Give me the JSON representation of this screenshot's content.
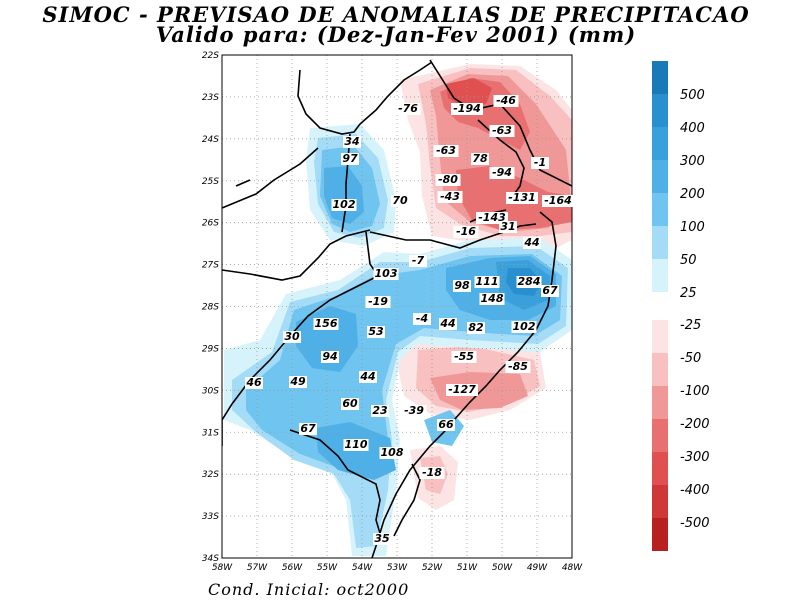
{
  "title_line1": "SIMOC - PREVISAO DE ANOMALIAS DE PRECIPITACAO",
  "title_line2": "Valido para: (Dez-Jan-Fev 2001) (mm)",
  "cond_inicial": "Cond. Inicial: oct2000",
  "lat_ticks": [
    "22S",
    "23S",
    "24S",
    "25S",
    "26S",
    "27S",
    "28S",
    "29S",
    "30S",
    "31S",
    "32S",
    "33S",
    "34S"
  ],
  "lon_ticks": [
    "58W",
    "57W",
    "56W",
    "55W",
    "54W",
    "53W",
    "52W",
    "51W",
    "50W",
    "49W",
    "48W"
  ],
  "colorbar_positive": [
    "500",
    "400",
    "300",
    "200",
    "100",
    "50",
    "25"
  ],
  "colorbar_negative": [
    "-25",
    "-50",
    "-100",
    "-200",
    "-300",
    "-400",
    "-500"
  ],
  "colors": {
    "pos": [
      "#1a7ab8",
      "#2a8fce",
      "#3aa0dc",
      "#4eb0e6",
      "#6fc4f0",
      "#a4dcf8",
      "#d6f3fc"
    ],
    "neg": [
      "#fce4e4",
      "#f8c0c0",
      "#f09898",
      "#e87070",
      "#e05050",
      "#d03838",
      "#b82020"
    ]
  },
  "labels": [
    {
      "t": "-76"
    },
    {
      "t": "-194"
    },
    {
      "t": "-46"
    },
    {
      "t": "-63"
    },
    {
      "t": "34"
    },
    {
      "t": "97"
    },
    {
      "t": "-63"
    },
    {
      "t": "78"
    },
    {
      "t": "-1"
    },
    {
      "t": "-80"
    },
    {
      "t": "-94"
    },
    {
      "t": "-43"
    },
    {
      "t": "-131"
    },
    {
      "t": "-164"
    },
    {
      "t": "102"
    },
    {
      "t": "70"
    },
    {
      "t": "-143"
    },
    {
      "t": "-16"
    },
    {
      "t": "31"
    },
    {
      "t": "44"
    },
    {
      "t": "-7"
    },
    {
      "t": "103"
    },
    {
      "t": "98"
    },
    {
      "t": "111"
    },
    {
      "t": "284"
    },
    {
      "t": "67"
    },
    {
      "t": "148"
    },
    {
      "t": "-19"
    },
    {
      "t": "-4"
    },
    {
      "t": "44"
    },
    {
      "t": "82"
    },
    {
      "t": "102"
    },
    {
      "t": "156"
    },
    {
      "t": "53"
    },
    {
      "t": "30"
    },
    {
      "t": "94"
    },
    {
      "t": "-55"
    },
    {
      "t": "-85"
    },
    {
      "t": "46"
    },
    {
      "t": "49"
    },
    {
      "t": "44"
    },
    {
      "t": "-127"
    },
    {
      "t": "60"
    },
    {
      "t": "23"
    },
    {
      "t": "-39"
    },
    {
      "t": "66"
    },
    {
      "t": "67"
    },
    {
      "t": "110"
    },
    {
      "t": "108"
    },
    {
      "t": "-18"
    },
    {
      "t": "35"
    }
  ]
}
